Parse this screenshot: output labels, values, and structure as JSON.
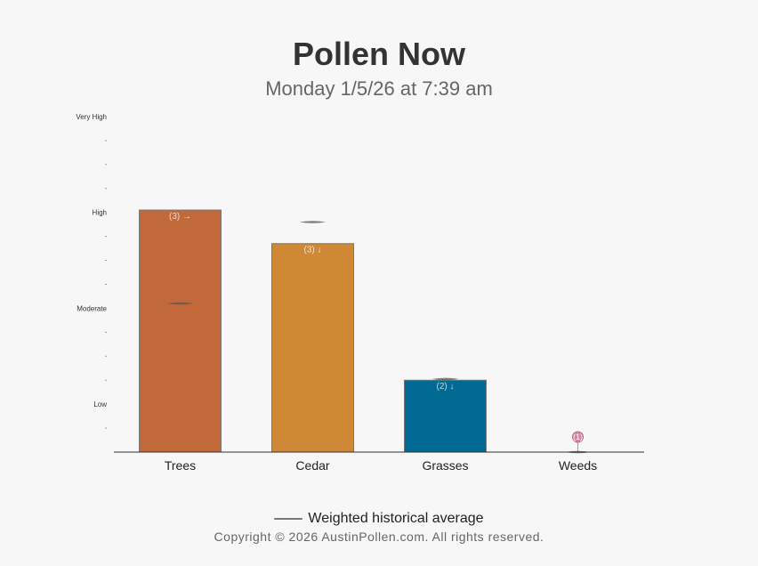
{
  "title": "Pollen Now",
  "subtitle": "Monday 1/5/26 at 7:39 am",
  "legend_label": "Weighted historical average",
  "copyright": "Copyright © 2026 AustinPollen.com.  All rights reserved.",
  "chart_data": {
    "type": "bar",
    "categories": [
      "Trees",
      "Cedar",
      "Grasses",
      "Weeds"
    ],
    "values": [
      10.1,
      8.7,
      3.0,
      0.0
    ],
    "historical_average": [
      6.2,
      9.6,
      3.05,
      0.0
    ],
    "bar_labels": [
      "(3) →",
      "(3) ↓",
      "(2) ↓",
      "(1)"
    ],
    "colors": [
      "#c1693a",
      "#cf8836",
      "#006a94",
      "#d2889f"
    ],
    "y_tick_labels": [
      "Low",
      "Moderate",
      "High",
      "Very High"
    ],
    "y_tick_positions": [
      2,
      6,
      10,
      14
    ],
    "ylim": [
      0,
      14
    ],
    "grid": false,
    "legend_position": "bottom-center"
  }
}
